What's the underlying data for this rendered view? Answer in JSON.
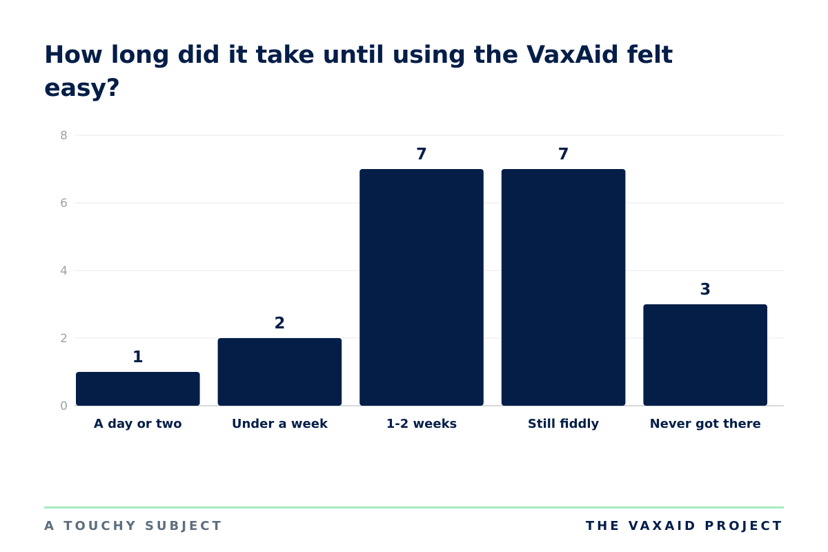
{
  "chart_data": {
    "type": "bar",
    "title": "How long did it take until using the VaxAid felt easy?",
    "categories": [
      "A day or two",
      "Under a week",
      "1-2 weeks",
      "Still fiddly",
      "Never got there"
    ],
    "values": [
      1,
      2,
      7,
      7,
      3
    ],
    "ylim": [
      0,
      8
    ],
    "yticks": [
      0,
      2,
      4,
      6,
      8
    ],
    "grid": true,
    "bar_color": "#041e48"
  },
  "footer": {
    "left": "A TOUCHY SUBJECT",
    "right": "THE VAXAID PROJECT"
  },
  "colors": {
    "accent_rule": "#a6ebc2"
  }
}
